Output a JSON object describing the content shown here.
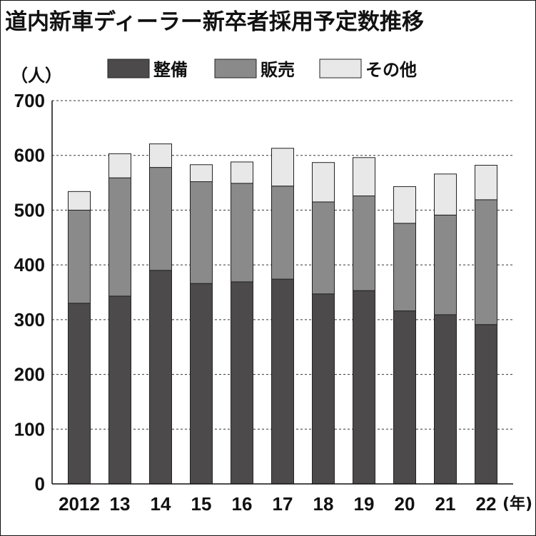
{
  "chart_data": {
    "type": "bar",
    "stacked": true,
    "title": "道内新車ディーラー新卒者採用予定数推移",
    "ylabel": "（人）",
    "xlabel": "(年)",
    "ylim": [
      0,
      700
    ],
    "yticks": [
      0,
      100,
      200,
      300,
      400,
      500,
      600,
      700
    ],
    "grid": "horizontal-dashed",
    "legend": "top-center",
    "categories": [
      "2012",
      "13",
      "14",
      "15",
      "16",
      "17",
      "18",
      "19",
      "20",
      "21",
      "22"
    ],
    "series": [
      {
        "name": "整備",
        "color": "#4d4a4b",
        "values": [
          330,
          343,
          390,
          366,
          369,
          374,
          347,
          353,
          316,
          309,
          291
        ]
      },
      {
        "name": "販売",
        "color": "#8a8a8a",
        "values": [
          170,
          216,
          188,
          186,
          180,
          170,
          168,
          173,
          160,
          182,
          228
        ]
      },
      {
        "name": "その他",
        "color": "#e8e8e8",
        "values": [
          34,
          44,
          43,
          31,
          39,
          69,
          72,
          70,
          67,
          75,
          63
        ]
      }
    ]
  }
}
